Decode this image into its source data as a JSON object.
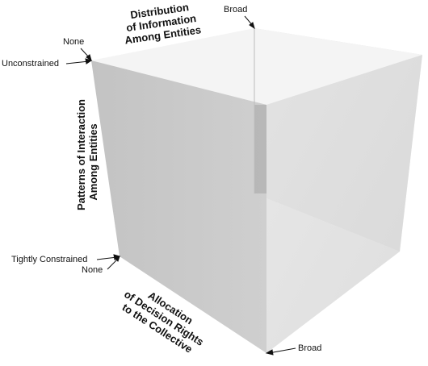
{
  "axes": {
    "information": {
      "title_lines": [
        "Distribution",
        "of Information",
        "Among Entities"
      ],
      "low": "None",
      "high": "Broad"
    },
    "interaction": {
      "title_lines": [
        "Patterns of Interaction",
        "Among Entities"
      ],
      "top": "Unconstrained",
      "bottom": "Tightly Constrained"
    },
    "decision_rights": {
      "title_lines": [
        "Allocation",
        "of Decision Rights",
        "to the Collective"
      ],
      "low": "None",
      "high": "Broad"
    }
  },
  "colors": {
    "top_face": "#f3f3f3",
    "left_face": "#c8c8c8",
    "right_face": "#d9d9d9",
    "bottom_face": "#eeeeee",
    "inner_edge": "#9a9a9a"
  }
}
